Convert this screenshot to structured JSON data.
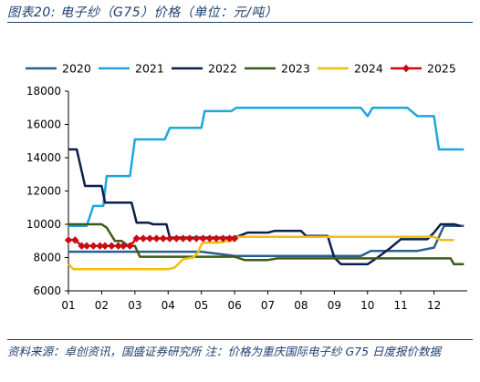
{
  "title": "图表20: 电子纱（G75）价格（单位：元/吨）",
  "source_text": "资料来源：卓创资讯，国盛证券研究所    注：价格为重庆国际电子纱 G75 日度报价数据",
  "chart_data": {
    "type": "line",
    "title": "",
    "xlabel": "",
    "ylabel": "",
    "ylim": [
      6000,
      18000
    ],
    "yticks": [
      6000,
      8000,
      10000,
      12000,
      14000,
      16000,
      18000
    ],
    "ytick_labels": [
      "6000",
      "8000",
      "10000",
      "12000",
      "14000",
      "16000",
      "18000"
    ],
    "xlim": [
      1,
      13
    ],
    "xticks": [
      1,
      2,
      3,
      4,
      5,
      6,
      7,
      8,
      9,
      10,
      11,
      12
    ],
    "xtick_labels": [
      "01",
      "02",
      "03",
      "04",
      "05",
      "06",
      "07",
      "08",
      "09",
      "10",
      "11",
      "12"
    ],
    "grid": false,
    "legend_position": "top",
    "series": [
      {
        "name": "2020",
        "color": "#2e5f8a",
        "marker": "none",
        "x": [
          1.0,
          2.0,
          3.0,
          4.0,
          5.0,
          6.0,
          7.0,
          8.0,
          9.0,
          9.8,
          10.1,
          10.5,
          11.0,
          11.5,
          12.0,
          12.3,
          12.9
        ],
        "y": [
          8350,
          8350,
          8350,
          8350,
          8350,
          8100,
          8100,
          8100,
          8100,
          8100,
          8400,
          8400,
          8400,
          8400,
          8600,
          9900,
          9900
        ]
      },
      {
        "name": "2021",
        "color": "#1ea7dd",
        "marker": "none",
        "x": [
          1.0,
          1.55,
          1.75,
          2.05,
          2.15,
          2.6,
          2.85,
          3.0,
          3.9,
          4.05,
          5.0,
          5.1,
          5.9,
          6.05,
          7.0,
          8.0,
          9.0,
          9.8,
          10.0,
          10.15,
          10.5,
          11.0,
          11.2,
          11.5,
          11.8,
          12.0,
          12.15,
          12.5,
          12.9
        ],
        "y": [
          9900,
          9900,
          11100,
          11100,
          12900,
          12900,
          12900,
          15100,
          15100,
          15800,
          15800,
          16800,
          16800,
          17000,
          17000,
          17000,
          17000,
          17000,
          16500,
          17000,
          17000,
          17000,
          17000,
          16500,
          16500,
          16500,
          14500,
          14500,
          14500
        ]
      },
      {
        "name": "2022",
        "color": "#0b1f4d",
        "marker": "none",
        "x": [
          1.0,
          1.25,
          1.5,
          2.0,
          2.1,
          2.6,
          2.9,
          3.05,
          3.4,
          3.55,
          3.95,
          4.05,
          5.0,
          5.5,
          6.0,
          6.4,
          7.0,
          7.2,
          8.0,
          8.15,
          8.8,
          9.0,
          9.2,
          9.5,
          10.0,
          10.3,
          10.7,
          11.0,
          11.5,
          11.8,
          12.0,
          12.2,
          12.6,
          12.8
        ],
        "y": [
          14500,
          14500,
          12300,
          12300,
          11300,
          11300,
          11300,
          10100,
          10100,
          10000,
          10000,
          9200,
          9200,
          9200,
          9200,
          9500,
          9500,
          9600,
          9600,
          9300,
          9300,
          8000,
          7600,
          7600,
          7600,
          8000,
          8600,
          9100,
          9100,
          9100,
          9500,
          10000,
          10000,
          9900
        ]
      },
      {
        "name": "2023",
        "color": "#3d5a1e",
        "marker": "none",
        "x": [
          1.0,
          2.0,
          2.15,
          2.4,
          2.6,
          2.8,
          3.0,
          3.15,
          4.0,
          5.0,
          6.0,
          6.3,
          7.0,
          7.3,
          8.0,
          9.0,
          10.0,
          11.0,
          12.0,
          12.5,
          12.6,
          12.9
        ],
        "y": [
          10000,
          10000,
          9800,
          9000,
          9000,
          8700,
          8700,
          8050,
          8050,
          8050,
          8050,
          7850,
          7850,
          7950,
          7950,
          7950,
          7950,
          7950,
          7950,
          7950,
          7600,
          7600
        ]
      },
      {
        "name": "2024",
        "color": "#f2be0f",
        "marker": "none",
        "x": [
          1.0,
          1.15,
          1.5,
          2.0,
          3.0,
          4.0,
          4.2,
          4.45,
          4.75,
          4.9,
          5.0,
          5.1,
          5.5,
          6.0,
          6.1,
          7.0,
          8.0,
          9.0,
          10.0,
          11.0,
          11.5,
          12.0,
          12.2,
          12.6
        ],
        "y": [
          7600,
          7300,
          7300,
          7300,
          7300,
          7300,
          7400,
          7900,
          8000,
          8300,
          8800,
          8900,
          8900,
          9050,
          9250,
          9250,
          9250,
          9250,
          9250,
          9250,
          9250,
          9250,
          9050,
          9050
        ]
      },
      {
        "name": "2025",
        "color": "#cc0a14",
        "marker": "diamond",
        "x": [
          1.0,
          1.2,
          1.4,
          1.55,
          1.75,
          1.95,
          2.1,
          2.3,
          2.5,
          2.65,
          2.85,
          3.05,
          3.25,
          3.45,
          3.65,
          3.85,
          4.05,
          4.25,
          4.45,
          4.65,
          4.85,
          5.05,
          5.25,
          5.45,
          5.65,
          5.85,
          6.0
        ],
        "y": [
          9050,
          9050,
          8700,
          8700,
          8700,
          8700,
          8700,
          8700,
          8700,
          8700,
          8700,
          9150,
          9150,
          9150,
          9150,
          9150,
          9150,
          9150,
          9150,
          9150,
          9150,
          9150,
          9150,
          9150,
          9150,
          9150,
          9150
        ]
      }
    ]
  }
}
